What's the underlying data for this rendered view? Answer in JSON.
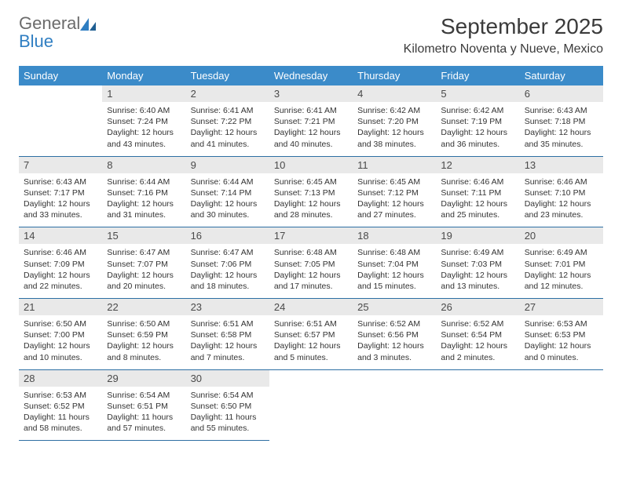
{
  "logo": {
    "general": "General",
    "blue": "Blue"
  },
  "header": {
    "title": "September 2025",
    "subtitle": "Kilometro Noventa y Nueve, Mexico"
  },
  "colors": {
    "header_bg": "#3b8bc9",
    "daynum_bg": "#e9e9e9",
    "row_border": "#2d6fa3",
    "logo_blue": "#2f7ec2",
    "text": "#3b3b3b"
  },
  "daysOfWeek": [
    "Sunday",
    "Monday",
    "Tuesday",
    "Wednesday",
    "Thursday",
    "Friday",
    "Saturday"
  ],
  "weeks": [
    [
      null,
      {
        "n": "1",
        "sr": "Sunrise: 6:40 AM",
        "ss": "Sunset: 7:24 PM",
        "d1": "Daylight: 12 hours",
        "d2": "and 43 minutes."
      },
      {
        "n": "2",
        "sr": "Sunrise: 6:41 AM",
        "ss": "Sunset: 7:22 PM",
        "d1": "Daylight: 12 hours",
        "d2": "and 41 minutes."
      },
      {
        "n": "3",
        "sr": "Sunrise: 6:41 AM",
        "ss": "Sunset: 7:21 PM",
        "d1": "Daylight: 12 hours",
        "d2": "and 40 minutes."
      },
      {
        "n": "4",
        "sr": "Sunrise: 6:42 AM",
        "ss": "Sunset: 7:20 PM",
        "d1": "Daylight: 12 hours",
        "d2": "and 38 minutes."
      },
      {
        "n": "5",
        "sr": "Sunrise: 6:42 AM",
        "ss": "Sunset: 7:19 PM",
        "d1": "Daylight: 12 hours",
        "d2": "and 36 minutes."
      },
      {
        "n": "6",
        "sr": "Sunrise: 6:43 AM",
        "ss": "Sunset: 7:18 PM",
        "d1": "Daylight: 12 hours",
        "d2": "and 35 minutes."
      }
    ],
    [
      {
        "n": "7",
        "sr": "Sunrise: 6:43 AM",
        "ss": "Sunset: 7:17 PM",
        "d1": "Daylight: 12 hours",
        "d2": "and 33 minutes."
      },
      {
        "n": "8",
        "sr": "Sunrise: 6:44 AM",
        "ss": "Sunset: 7:16 PM",
        "d1": "Daylight: 12 hours",
        "d2": "and 31 minutes."
      },
      {
        "n": "9",
        "sr": "Sunrise: 6:44 AM",
        "ss": "Sunset: 7:14 PM",
        "d1": "Daylight: 12 hours",
        "d2": "and 30 minutes."
      },
      {
        "n": "10",
        "sr": "Sunrise: 6:45 AM",
        "ss": "Sunset: 7:13 PM",
        "d1": "Daylight: 12 hours",
        "d2": "and 28 minutes."
      },
      {
        "n": "11",
        "sr": "Sunrise: 6:45 AM",
        "ss": "Sunset: 7:12 PM",
        "d1": "Daylight: 12 hours",
        "d2": "and 27 minutes."
      },
      {
        "n": "12",
        "sr": "Sunrise: 6:46 AM",
        "ss": "Sunset: 7:11 PM",
        "d1": "Daylight: 12 hours",
        "d2": "and 25 minutes."
      },
      {
        "n": "13",
        "sr": "Sunrise: 6:46 AM",
        "ss": "Sunset: 7:10 PM",
        "d1": "Daylight: 12 hours",
        "d2": "and 23 minutes."
      }
    ],
    [
      {
        "n": "14",
        "sr": "Sunrise: 6:46 AM",
        "ss": "Sunset: 7:09 PM",
        "d1": "Daylight: 12 hours",
        "d2": "and 22 minutes."
      },
      {
        "n": "15",
        "sr": "Sunrise: 6:47 AM",
        "ss": "Sunset: 7:07 PM",
        "d1": "Daylight: 12 hours",
        "d2": "and 20 minutes."
      },
      {
        "n": "16",
        "sr": "Sunrise: 6:47 AM",
        "ss": "Sunset: 7:06 PM",
        "d1": "Daylight: 12 hours",
        "d2": "and 18 minutes."
      },
      {
        "n": "17",
        "sr": "Sunrise: 6:48 AM",
        "ss": "Sunset: 7:05 PM",
        "d1": "Daylight: 12 hours",
        "d2": "and 17 minutes."
      },
      {
        "n": "18",
        "sr": "Sunrise: 6:48 AM",
        "ss": "Sunset: 7:04 PM",
        "d1": "Daylight: 12 hours",
        "d2": "and 15 minutes."
      },
      {
        "n": "19",
        "sr": "Sunrise: 6:49 AM",
        "ss": "Sunset: 7:03 PM",
        "d1": "Daylight: 12 hours",
        "d2": "and 13 minutes."
      },
      {
        "n": "20",
        "sr": "Sunrise: 6:49 AM",
        "ss": "Sunset: 7:01 PM",
        "d1": "Daylight: 12 hours",
        "d2": "and 12 minutes."
      }
    ],
    [
      {
        "n": "21",
        "sr": "Sunrise: 6:50 AM",
        "ss": "Sunset: 7:00 PM",
        "d1": "Daylight: 12 hours",
        "d2": "and 10 minutes."
      },
      {
        "n": "22",
        "sr": "Sunrise: 6:50 AM",
        "ss": "Sunset: 6:59 PM",
        "d1": "Daylight: 12 hours",
        "d2": "and 8 minutes."
      },
      {
        "n": "23",
        "sr": "Sunrise: 6:51 AM",
        "ss": "Sunset: 6:58 PM",
        "d1": "Daylight: 12 hours",
        "d2": "and 7 minutes."
      },
      {
        "n": "24",
        "sr": "Sunrise: 6:51 AM",
        "ss": "Sunset: 6:57 PM",
        "d1": "Daylight: 12 hours",
        "d2": "and 5 minutes."
      },
      {
        "n": "25",
        "sr": "Sunrise: 6:52 AM",
        "ss": "Sunset: 6:56 PM",
        "d1": "Daylight: 12 hours",
        "d2": "and 3 minutes."
      },
      {
        "n": "26",
        "sr": "Sunrise: 6:52 AM",
        "ss": "Sunset: 6:54 PM",
        "d1": "Daylight: 12 hours",
        "d2": "and 2 minutes."
      },
      {
        "n": "27",
        "sr": "Sunrise: 6:53 AM",
        "ss": "Sunset: 6:53 PM",
        "d1": "Daylight: 12 hours",
        "d2": "and 0 minutes."
      }
    ],
    [
      {
        "n": "28",
        "sr": "Sunrise: 6:53 AM",
        "ss": "Sunset: 6:52 PM",
        "d1": "Daylight: 11 hours",
        "d2": "and 58 minutes."
      },
      {
        "n": "29",
        "sr": "Sunrise: 6:54 AM",
        "ss": "Sunset: 6:51 PM",
        "d1": "Daylight: 11 hours",
        "d2": "and 57 minutes."
      },
      {
        "n": "30",
        "sr": "Sunrise: 6:54 AM",
        "ss": "Sunset: 6:50 PM",
        "d1": "Daylight: 11 hours",
        "d2": "and 55 minutes."
      },
      null,
      null,
      null,
      null
    ]
  ]
}
